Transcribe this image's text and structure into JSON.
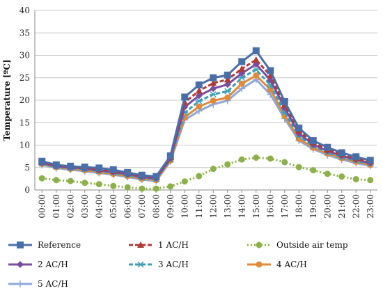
{
  "chart_data": {
    "type": "line",
    "ylabel": "Temperature [ºC]",
    "xlabel": "",
    "ylim": [
      0,
      40
    ],
    "yticks": [
      0,
      5,
      10,
      15,
      20,
      25,
      30,
      35,
      40
    ],
    "grid": true,
    "legend_position": "bottom",
    "categories": [
      "00:00",
      "01:00",
      "02:00",
      "03:00",
      "04:00",
      "05:00",
      "06:00",
      "07:00",
      "08:00",
      "09:00",
      "10:00",
      "11:00",
      "12:00",
      "13:00",
      "14:00",
      "15:00",
      "16:00",
      "17:00",
      "18:00",
      "19:00",
      "20:00",
      "21:00",
      "22:00",
      "23:00"
    ],
    "series": [
      {
        "name": "Reference",
        "color": "#4a6fa8",
        "dash": "solid",
        "marker": "square",
        "values": [
          6.4,
          5.6,
          5.3,
          5.1,
          4.9,
          4.5,
          3.9,
          3.3,
          3.0,
          7.6,
          20.7,
          23.4,
          25.0,
          25.6,
          28.6,
          31.0,
          26.6,
          19.7,
          13.8,
          11.0,
          9.5,
          8.3,
          7.4,
          6.6
        ]
      },
      {
        "name": "1 AC/H",
        "color": "#b03a36",
        "dash": "6,3",
        "marker": "triangle",
        "values": [
          6.2,
          5.5,
          5.2,
          4.9,
          4.6,
          4.2,
          3.7,
          3.1,
          2.8,
          7.3,
          19.5,
          22.1,
          23.8,
          24.6,
          27.0,
          29.0,
          25.5,
          19.0,
          13.2,
          10.6,
          9.0,
          7.9,
          7.0,
          6.3
        ]
      },
      {
        "name": "Outside air temp",
        "color": "#8cb04a",
        "dash": "2,3",
        "marker": "circle",
        "values": [
          2.6,
          2.2,
          2.0,
          1.6,
          1.3,
          0.9,
          0.6,
          0.3,
          0.3,
          0.8,
          1.9,
          3.1,
          4.7,
          5.7,
          6.8,
          7.2,
          7.0,
          6.2,
          5.1,
          4.4,
          3.6,
          3.0,
          2.4,
          2.2
        ]
      },
      {
        "name": "2 AC/H",
        "color": "#7a4d9e",
        "dash": "solid",
        "marker": "diamond",
        "values": [
          6.0,
          5.3,
          5.0,
          4.8,
          4.4,
          4.0,
          3.5,
          2.9,
          2.6,
          7.0,
          18.5,
          21.0,
          22.6,
          23.5,
          26.0,
          28.0,
          24.5,
          18.3,
          12.6,
          10.1,
          8.7,
          7.6,
          6.8,
          6.0
        ]
      },
      {
        "name": "3 AC/H",
        "color": "#3aa0b8",
        "dash": "6,3",
        "marker": "star",
        "values": [
          5.9,
          5.2,
          4.9,
          4.6,
          4.2,
          3.8,
          3.3,
          2.7,
          2.4,
          6.8,
          17.2,
          19.8,
          21.3,
          22.0,
          25.0,
          26.8,
          23.4,
          17.3,
          12.0,
          9.8,
          8.4,
          7.3,
          6.5,
          5.8
        ]
      },
      {
        "name": "4 AC/H",
        "color": "#e08a3a",
        "dash": "solid",
        "marker": "circle",
        "values": [
          5.8,
          5.1,
          4.7,
          4.4,
          4.0,
          3.6,
          3.1,
          2.5,
          2.2,
          6.6,
          16.2,
          18.6,
          19.9,
          20.6,
          23.7,
          25.5,
          22.4,
          16.5,
          11.4,
          9.4,
          8.1,
          7.1,
          6.3,
          5.6
        ]
      },
      {
        "name": "5 AC/H",
        "color": "#8fa8d8",
        "dash": "solid",
        "marker": "plus",
        "values": [
          5.6,
          4.9,
          4.5,
          4.2,
          3.8,
          3.4,
          2.9,
          2.3,
          2.0,
          6.4,
          15.6,
          17.6,
          19.1,
          19.9,
          22.6,
          24.6,
          21.3,
          15.9,
          11.0,
          9.1,
          7.8,
          6.8,
          6.0,
          5.4
        ]
      }
    ]
  }
}
